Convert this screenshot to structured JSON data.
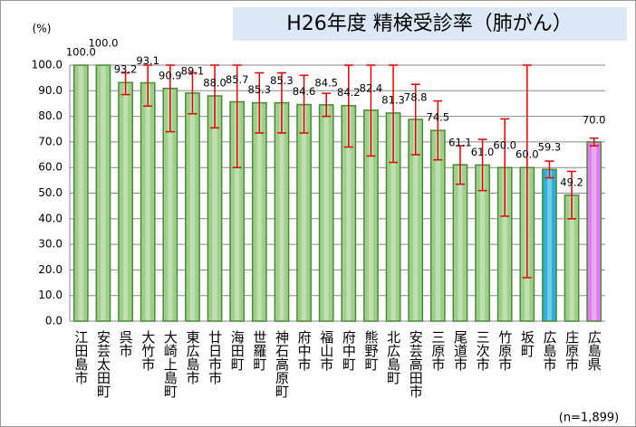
{
  "chart_data": {
    "type": "bar",
    "title": "H26年度 精検受診率（肺がん）",
    "y_unit": "(%)",
    "note": "(n=1,899)",
    "categories": [
      "江田島市",
      "安芸太田町",
      "呉市",
      "大竹市",
      "大崎上島町",
      "東広島市",
      "廿日市市",
      "海田町",
      "世羅町",
      "神石高原町",
      "府中市",
      "福山市",
      "府中町",
      "熊野町",
      "北広島町",
      "安芸高田市",
      "三原市",
      "尾道市",
      "三次市",
      "竹原市",
      "坂町",
      "広島市",
      "庄原市",
      "広島県"
    ],
    "values": [
      100.0,
      100.0,
      93.2,
      93.1,
      90.9,
      89.1,
      88.0,
      85.7,
      85.3,
      85.3,
      84.6,
      84.5,
      84.2,
      82.4,
      81.3,
      78.8,
      74.5,
      61.1,
      61.0,
      60.0,
      60.0,
      59.3,
      49.2,
      70.0
    ],
    "value_labels": [
      "100.0",
      "100.0",
      "93.2",
      "93.1",
      "90.9",
      "89.1",
      "88.0",
      "85.7",
      "85.3",
      "85.3",
      "84.6",
      "84.5",
      "84.2",
      "82.4",
      "81.3",
      "78.8",
      "74.5",
      "61.1",
      "61.0",
      "60.0",
      "60.0",
      "59.3",
      "49.2",
      "70.0"
    ],
    "ci_low": [
      null,
      null,
      88.5,
      84,
      74,
      81,
      75.5,
      60,
      73.5,
      73.5,
      73.5,
      80,
      68,
      64.5,
      62,
      65,
      63,
      53.5,
      51,
      41,
      17,
      56,
      40,
      68.5
    ],
    "ci_high": [
      null,
      null,
      97,
      100,
      100,
      97,
      100,
      100,
      97,
      97,
      96,
      89,
      100,
      100,
      100,
      92.5,
      86,
      68.5,
      71,
      79,
      100,
      62.5,
      58.5,
      71.5
    ],
    "colors": [
      "#9fd08a",
      "#9fd08a",
      "#9fd08a",
      "#9fd08a",
      "#9fd08a",
      "#9fd08a",
      "#9fd08a",
      "#9fd08a",
      "#9fd08a",
      "#9fd08a",
      "#9fd08a",
      "#9fd08a",
      "#9fd08a",
      "#9fd08a",
      "#9fd08a",
      "#9fd08a",
      "#9fd08a",
      "#9fd08a",
      "#9fd08a",
      "#9fd08a",
      "#9fd08a",
      "#2bb0d9",
      "#9fd08a",
      "#e27ff0"
    ],
    "error_color": "#e00000",
    "ylim": [
      0,
      100
    ],
    "yticks": [
      {
        "value": 0,
        "label": "0.0"
      },
      {
        "value": 10,
        "label": "10.0"
      },
      {
        "value": 20,
        "label": "20.0"
      },
      {
        "value": 30,
        "label": "30.0"
      },
      {
        "value": 40,
        "label": "40.0"
      },
      {
        "value": 50,
        "label": "50.0"
      },
      {
        "value": 60,
        "label": "60.0"
      },
      {
        "value": 70,
        "label": "70.0"
      },
      {
        "value": 80,
        "label": "80.0"
      },
      {
        "value": 90,
        "label": "90.0"
      },
      {
        "value": 100,
        "label": "100.0"
      }
    ],
    "grid": true
  }
}
